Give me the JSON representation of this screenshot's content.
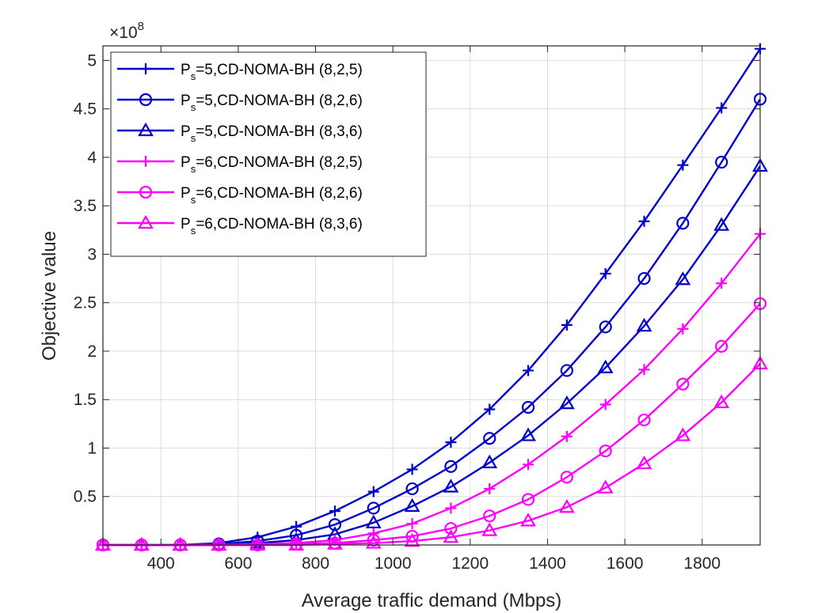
{
  "chart_data": {
    "type": "line",
    "title": "",
    "xlabel": "Average traffic demand (Mbps)",
    "ylabel": "Objective value",
    "y_multiplier_label": "×10",
    "y_multiplier_exponent": "8",
    "xlim": [
      250,
      1950
    ],
    "ylim": [
      0,
      5.15
    ],
    "xticks": [
      400,
      600,
      800,
      1000,
      1200,
      1400,
      1600,
      1800
    ],
    "yticks": [
      0.5,
      1,
      1.5,
      2,
      2.5,
      3,
      3.5,
      4,
      4.5,
      5
    ],
    "ytick_labels": [
      "0.5",
      "1",
      "1.5",
      "2",
      "2.5",
      "3",
      "3.5",
      "4",
      "4.5",
      "5"
    ],
    "grid": true,
    "legend_position": "top-left",
    "x": [
      250,
      350,
      450,
      550,
      650,
      750,
      850,
      950,
      1050,
      1150,
      1250,
      1350,
      1450,
      1550,
      1650,
      1750,
      1850,
      1950
    ],
    "series": [
      {
        "name_main": "P",
        "name_sub": "s",
        "name_rest": "=5,CD-NOMA-BH (8,2,5)",
        "color": "#0000cd",
        "marker": "plus",
        "values": [
          0.0,
          0.0,
          0.0,
          0.02,
          0.08,
          0.19,
          0.35,
          0.55,
          0.78,
          1.06,
          1.4,
          1.8,
          2.27,
          2.8,
          3.34,
          3.92,
          4.51,
          5.12
        ]
      },
      {
        "name_main": "P",
        "name_sub": "s",
        "name_rest": "=5,CD-NOMA-BH (8,2,6)",
        "color": "#0000cd",
        "marker": "circle",
        "values": [
          0.0,
          0.0,
          0.0,
          0.01,
          0.04,
          0.1,
          0.21,
          0.38,
          0.58,
          0.81,
          1.1,
          1.42,
          1.8,
          2.25,
          2.75,
          3.32,
          3.95,
          4.6
        ]
      },
      {
        "name_main": "P",
        "name_sub": "s",
        "name_rest": "=5,CD-NOMA-BH (8,3,6)",
        "color": "#0000cd",
        "marker": "triangle",
        "values": [
          0.0,
          0.0,
          0.0,
          0.0,
          0.02,
          0.05,
          0.11,
          0.23,
          0.4,
          0.6,
          0.85,
          1.13,
          1.46,
          1.83,
          2.26,
          2.74,
          3.3,
          3.91
        ]
      },
      {
        "name_main": "P",
        "name_sub": "s",
        "name_rest": "=6,CD-NOMA-BH (8,2,5)",
        "color": "#ff00ff",
        "marker": "plus",
        "values": [
          0.0,
          0.0,
          0.0,
          0.0,
          0.01,
          0.02,
          0.05,
          0.12,
          0.22,
          0.38,
          0.58,
          0.83,
          1.12,
          1.45,
          1.81,
          2.23,
          2.7,
          3.21
        ]
      },
      {
        "name_main": "P",
        "name_sub": "s",
        "name_rest": "=6,CD-NOMA-BH (8,2,6)",
        "color": "#ff00ff",
        "marker": "circle",
        "values": [
          0.0,
          0.0,
          0.0,
          0.0,
          0.0,
          0.01,
          0.02,
          0.05,
          0.09,
          0.17,
          0.3,
          0.47,
          0.7,
          0.97,
          1.29,
          1.66,
          2.05,
          2.49
        ]
      },
      {
        "name_main": "P",
        "name_sub": "s",
        "name_rest": "=6,CD-NOMA-BH (8,3,6)",
        "color": "#ff00ff",
        "marker": "triangle",
        "values": [
          0.0,
          0.0,
          0.0,
          0.0,
          0.0,
          0.0,
          0.01,
          0.02,
          0.04,
          0.08,
          0.15,
          0.25,
          0.39,
          0.59,
          0.84,
          1.13,
          1.47,
          1.87
        ]
      }
    ]
  }
}
